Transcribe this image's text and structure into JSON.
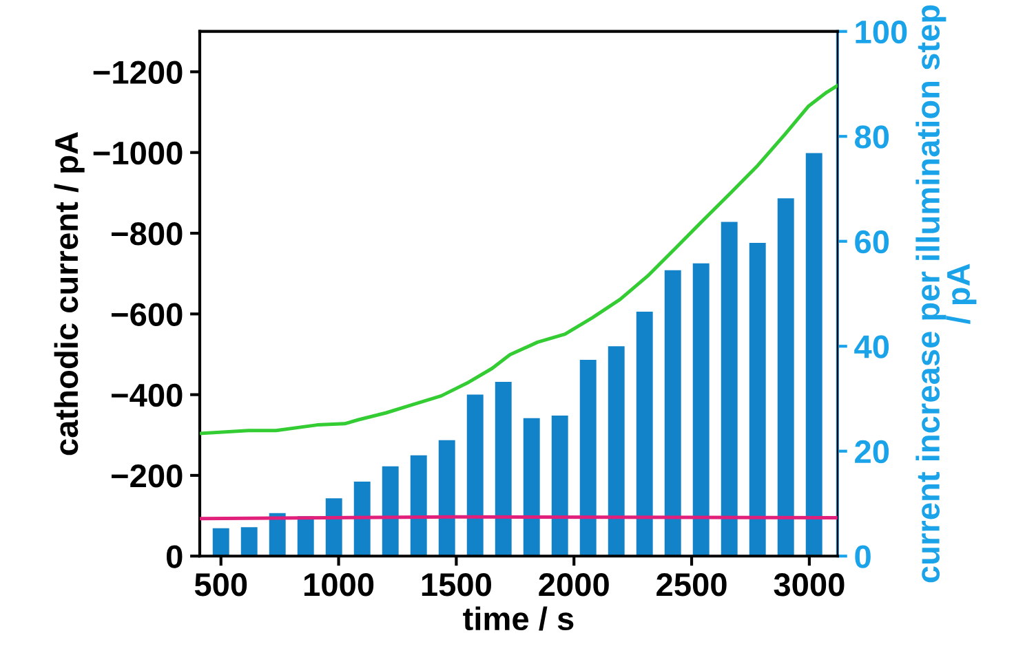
{
  "chart_data": {
    "type": "bar",
    "xlabel": "time / s",
    "ylabel": "cathodic current / pA",
    "y2label": "current increase per illumination step / pA",
    "xlim": [
      410,
      3120
    ],
    "xticks": [
      500,
      1000,
      1500,
      2000,
      2500,
      3000
    ],
    "ylim": [
      0,
      -1300
    ],
    "yticks": [
      0,
      -200,
      -400,
      -600,
      -800,
      -1000,
      -1200
    ],
    "y2lim": [
      0,
      100
    ],
    "y2ticks": [
      0,
      20,
      40,
      60,
      80,
      100
    ],
    "grid": false,
    "legend": false,
    "series": [
      {
        "axis": "y2",
        "color": "#1283c9",
        "x": [
          500,
          620,
          740,
          860,
          980,
          1100,
          1220,
          1340,
          1460,
          1580,
          1700,
          1820,
          1940,
          2060,
          2180,
          2300,
          2420,
          2540,
          2660,
          2780,
          2900,
          3020
        ],
        "values": [
          5.3,
          5.5,
          8.2,
          7.6,
          11,
          14.2,
          17.1,
          19.2,
          22.1,
          30.8,
          33.2,
          26.3,
          26.8,
          37.4,
          40,
          46.6,
          54.5,
          55.8,
          63.7,
          59.7,
          68.2,
          76.8
        ]
      },
      {
        "type": "line",
        "axis": "y",
        "color": "#33cc33",
        "x": [
          412,
          617,
          734,
          909,
          1026,
          1085,
          1202,
          1319,
          1436,
          1553,
          1652,
          1728,
          1845,
          1962,
          2079,
          2196,
          2313,
          2430,
          2547,
          2664,
          2781,
          2898,
          2997,
          3073,
          3120
        ],
        "values": [
          -304,
          -311,
          -311,
          -325,
          -328,
          -338,
          -355,
          -376,
          -397,
          -431,
          -465,
          -499,
          -530,
          -550,
          -591,
          -636,
          -694,
          -762,
          -831,
          -899,
          -968,
          -1046,
          -1115,
          -1149,
          -1166
        ]
      },
      {
        "type": "line",
        "axis": "y",
        "color": "#e0207a",
        "x": [
          412,
          1500,
          3120
        ],
        "values": [
          -93,
          -97,
          -95
        ]
      }
    ]
  }
}
